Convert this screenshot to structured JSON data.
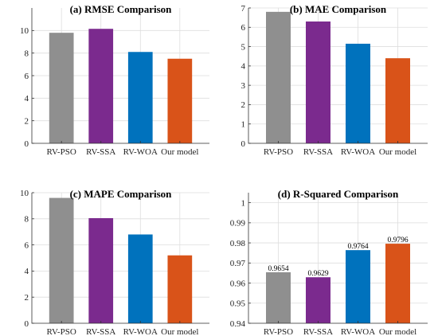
{
  "colors": [
    "#8f8f8f",
    "#7b2a8e",
    "#0072bd",
    "#d95319"
  ],
  "chart_data": [
    {
      "type": "bar",
      "title": "(a) RMSE Comparison",
      "categories": [
        "RV-PSO",
        "RV-SSA",
        "RV-WOA",
        "Our model"
      ],
      "values": [
        9.8,
        10.15,
        8.1,
        7.5
      ],
      "ylim": [
        0,
        12
      ],
      "yticks": [
        0,
        2,
        4,
        6,
        8,
        10
      ],
      "grid": true,
      "data_labels": []
    },
    {
      "type": "bar",
      "title": "(b) MAE Comparison",
      "categories": [
        "RV-PSO",
        "RV-SSA",
        "RV-WOA",
        "Our model"
      ],
      "values": [
        6.8,
        6.3,
        5.15,
        4.4
      ],
      "ylim": [
        0,
        7
      ],
      "yticks": [
        0,
        1,
        2,
        3,
        4,
        5,
        6,
        7
      ],
      "grid": true,
      "data_labels": []
    },
    {
      "type": "bar",
      "title": "(c) MAPE Comparison",
      "categories": [
        "RV-PSO",
        "RV-SSA",
        "RV-WOA",
        "Our model"
      ],
      "values": [
        9.6,
        8.05,
        6.8,
        5.2
      ],
      "ylim": [
        0,
        10
      ],
      "yticks": [
        0,
        2,
        4,
        6,
        8,
        10
      ],
      "grid": true,
      "data_labels": []
    },
    {
      "type": "bar",
      "title": "(d) R-Squared Comparison",
      "categories": [
        "RV-PSO",
        "RV-SSA",
        "RV-WOA",
        "Our model"
      ],
      "values": [
        0.9654,
        0.9629,
        0.9764,
        0.9796
      ],
      "ylim": [
        0.94,
        1.005
      ],
      "yticks": [
        0.94,
        0.95,
        0.96,
        0.97,
        0.98,
        0.99,
        1
      ],
      "grid": true,
      "data_labels": [
        "0.9654",
        "0.9629",
        "0.9764",
        "0.9796"
      ]
    }
  ]
}
